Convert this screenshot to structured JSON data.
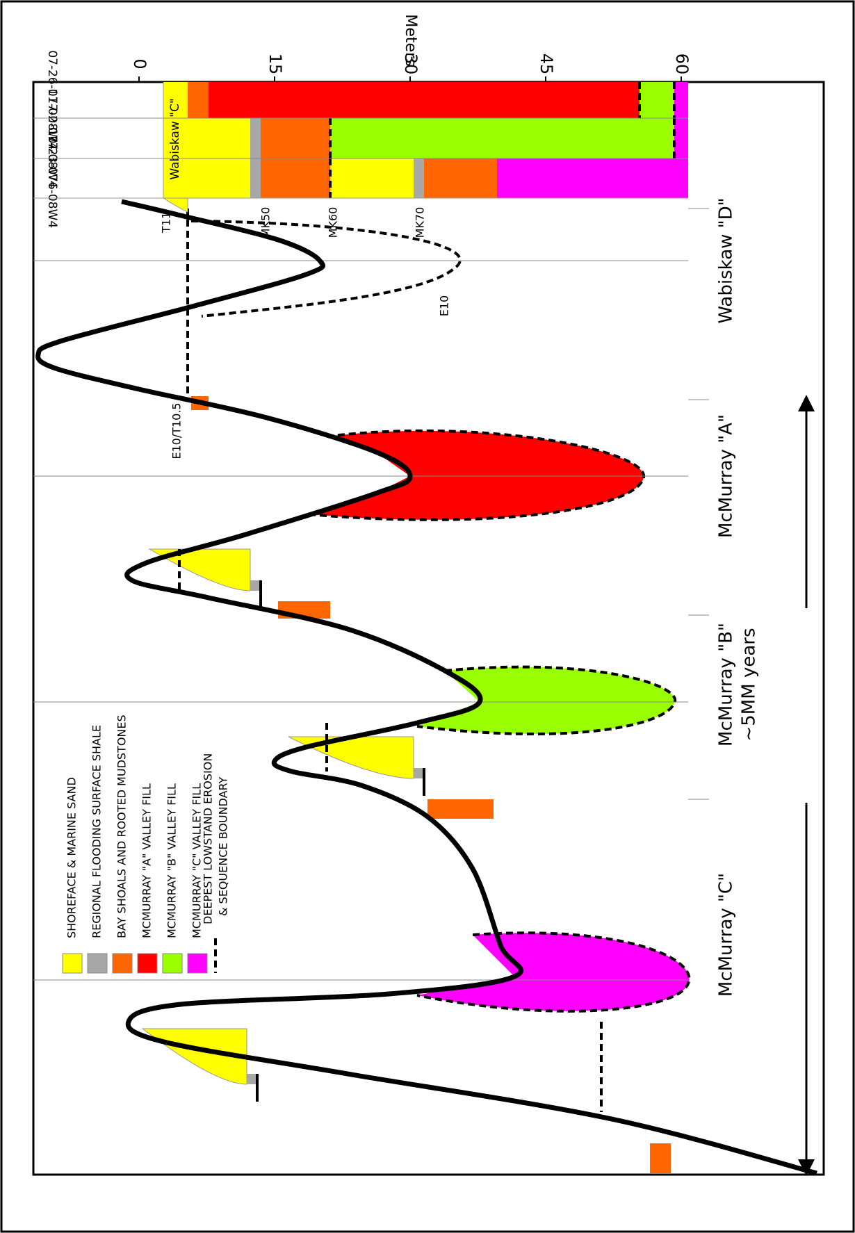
{
  "axis": {
    "title": "Meters",
    "ticks": [
      0,
      15,
      30,
      45,
      60
    ]
  },
  "wells": [
    "07-26-077-08W4",
    "11-02-077-08W4",
    "10-23-076-08W4"
  ],
  "unit_label": "Wabiskaw \"C\"",
  "markers": [
    "T11",
    "MK50",
    "MK60",
    "MK70",
    "E10",
    "E10/T10.5"
  ],
  "legend": [
    "SHOREFACE & MARINE SAND",
    "REGIONAL FLOODING SURFACE SHALE",
    "BAY SHOALS AND ROOTED MUDSTONES",
    "MCMURRAY \"A\" VALLEY FILL",
    "MCMURRAY \"B\" VALLEY FILL",
    "MCMURRAY \"C\" VALLEY FILL",
    "DEEPEST LOWSTAND EROSION",
    "& SEQUENCE BOUNDARY"
  ],
  "cycles": [
    "McMurray \"C\"",
    "McMurray \"B\"",
    "McMurray \"A\"",
    "Wabiskaw \"D\""
  ],
  "time_span": "~5MM years"
}
